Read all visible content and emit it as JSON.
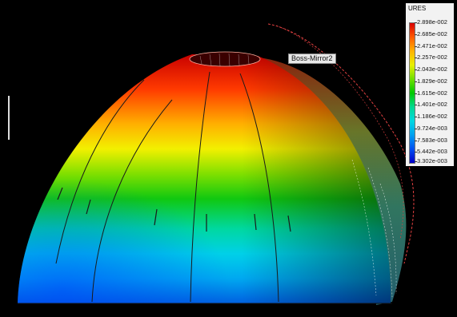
{
  "legend": {
    "title": "URES",
    "ticks": [
      "2.898e-002",
      "2.685e-002",
      "2.471e-002",
      "2.257e-002",
      "2.043e-002",
      "1.829e-002",
      "1.615e-002",
      "1.401e-002",
      "1.186e-002",
      "9.724e-003",
      "7.583e-003",
      "5.442e-003",
      "3.302e-003"
    ],
    "colors": [
      "#d80000",
      "#ff5a00",
      "#ffb200",
      "#e8f000",
      "#70e000",
      "#00c800",
      "#00d890",
      "#00d8e0",
      "#00a0f0",
      "#0050f0",
      "#0000c8"
    ]
  },
  "part_label": "Boss-Mirror2"
}
